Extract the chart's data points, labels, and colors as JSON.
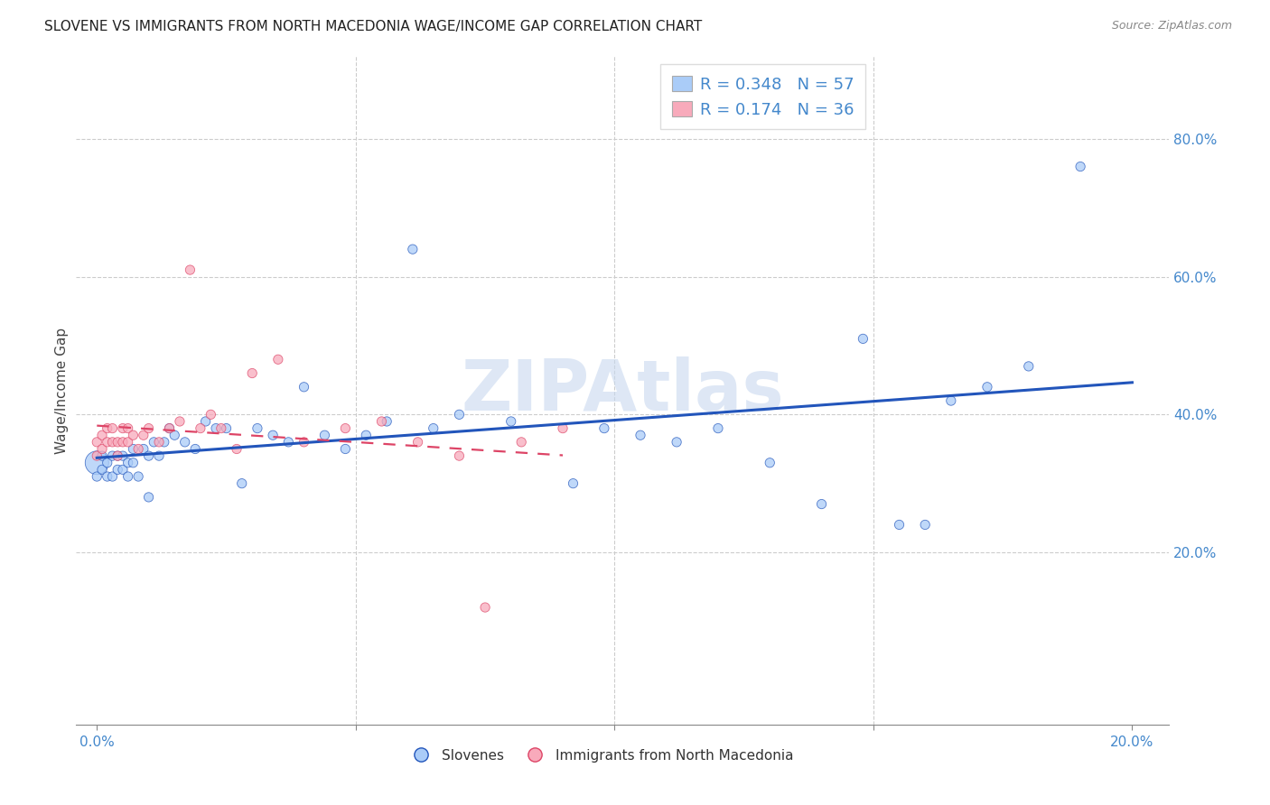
{
  "title": "SLOVENE VS IMMIGRANTS FROM NORTH MACEDONIA WAGE/INCOME GAP CORRELATION CHART",
  "source": "Source: ZipAtlas.com",
  "ylabel": "Wage/Income Gap",
  "xlim": [
    -0.004,
    0.207
  ],
  "ylim": [
    -0.05,
    0.92
  ],
  "blue_color": "#aaccf8",
  "pink_color": "#f8aabb",
  "line_blue_color": "#2255bb",
  "line_pink_color": "#dd4466",
  "watermark_text": "ZIPAtlas",
  "watermark_color": "#c8d8ef",
  "legend_blue_r": "0.348",
  "legend_blue_n": "57",
  "legend_pink_r": "0.174",
  "legend_pink_n": "36",
  "right_yticks": [
    0.2,
    0.4,
    0.6,
    0.8
  ],
  "right_ytick_labels": [
    "20.0%",
    "40.0%",
    "60.0%",
    "80.0%"
  ],
  "grid_yticks": [
    0.2,
    0.4,
    0.6,
    0.8
  ],
  "grid_xticks": [
    0.05,
    0.1,
    0.15
  ],
  "blue_x": [
    0.0,
    0.0,
    0.001,
    0.001,
    0.002,
    0.002,
    0.003,
    0.003,
    0.004,
    0.004,
    0.005,
    0.005,
    0.006,
    0.006,
    0.007,
    0.007,
    0.008,
    0.009,
    0.01,
    0.01,
    0.011,
    0.012,
    0.013,
    0.014,
    0.015,
    0.017,
    0.019,
    0.021,
    0.023,
    0.025,
    0.028,
    0.031,
    0.034,
    0.037,
    0.04,
    0.044,
    0.048,
    0.052,
    0.056,
    0.061,
    0.065,
    0.07,
    0.08,
    0.092,
    0.098,
    0.105,
    0.112,
    0.12,
    0.13,
    0.14,
    0.148,
    0.155,
    0.16,
    0.165,
    0.172,
    0.18,
    0.19
  ],
  "blue_y": [
    0.33,
    0.31,
    0.34,
    0.32,
    0.33,
    0.31,
    0.34,
    0.31,
    0.34,
    0.32,
    0.34,
    0.32,
    0.33,
    0.31,
    0.35,
    0.33,
    0.31,
    0.35,
    0.28,
    0.34,
    0.36,
    0.34,
    0.36,
    0.38,
    0.37,
    0.36,
    0.35,
    0.39,
    0.38,
    0.38,
    0.3,
    0.38,
    0.37,
    0.36,
    0.44,
    0.37,
    0.35,
    0.37,
    0.39,
    0.64,
    0.38,
    0.4,
    0.39,
    0.3,
    0.38,
    0.37,
    0.36,
    0.38,
    0.33,
    0.27,
    0.51,
    0.24,
    0.24,
    0.42,
    0.44,
    0.47,
    0.76
  ],
  "blue_dot_size": 55,
  "blue_big_size": 350,
  "pink_x": [
    0.0,
    0.0,
    0.001,
    0.001,
    0.002,
    0.002,
    0.003,
    0.003,
    0.004,
    0.004,
    0.005,
    0.005,
    0.006,
    0.006,
    0.007,
    0.008,
    0.009,
    0.01,
    0.012,
    0.014,
    0.016,
    0.018,
    0.02,
    0.022,
    0.024,
    0.027,
    0.03,
    0.035,
    0.04,
    0.048,
    0.055,
    0.062,
    0.07,
    0.075,
    0.082,
    0.09
  ],
  "pink_y": [
    0.36,
    0.34,
    0.37,
    0.35,
    0.38,
    0.36,
    0.38,
    0.36,
    0.36,
    0.34,
    0.38,
    0.36,
    0.38,
    0.36,
    0.37,
    0.35,
    0.37,
    0.38,
    0.36,
    0.38,
    0.39,
    0.61,
    0.38,
    0.4,
    0.38,
    0.35,
    0.46,
    0.48,
    0.36,
    0.38,
    0.39,
    0.36,
    0.34,
    0.12,
    0.36,
    0.38
  ],
  "pink_dot_size": 55
}
